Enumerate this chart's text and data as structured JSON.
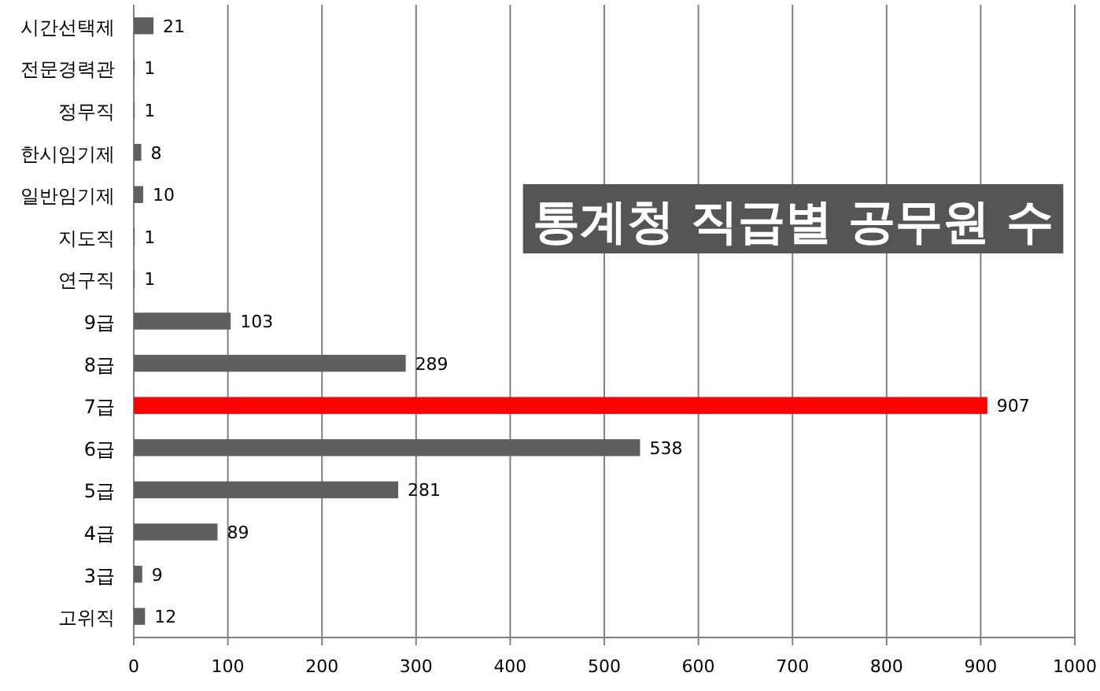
{
  "chart_data": {
    "type": "bar",
    "orientation": "horizontal",
    "title": "통계청 직급별 공무원 수",
    "categories": [
      "시간선택제",
      "전문경력관",
      "정무직",
      "한시임기제",
      "일반임기제",
      "지도직",
      "연구직",
      "9급",
      "8급",
      "7급",
      "6급",
      "5급",
      "4급",
      "3급",
      "고위직"
    ],
    "values": [
      21,
      1,
      1,
      8,
      10,
      1,
      1,
      103,
      289,
      907,
      538,
      281,
      89,
      9,
      12
    ],
    "colors": [
      "#5f5f5f",
      "#5f5f5f",
      "#5f5f5f",
      "#5f5f5f",
      "#5f5f5f",
      "#5f5f5f",
      "#5f5f5f",
      "#5f5f5f",
      "#5f5f5f",
      "#ff0000",
      "#5f5f5f",
      "#5f5f5f",
      "#5f5f5f",
      "#5f5f5f",
      "#5f5f5f"
    ],
    "xlim": [
      0,
      1000
    ],
    "xticks": [
      0,
      100,
      200,
      300,
      400,
      500,
      600,
      700,
      800,
      900,
      1000
    ],
    "grid": "x",
    "data_labels": true
  }
}
